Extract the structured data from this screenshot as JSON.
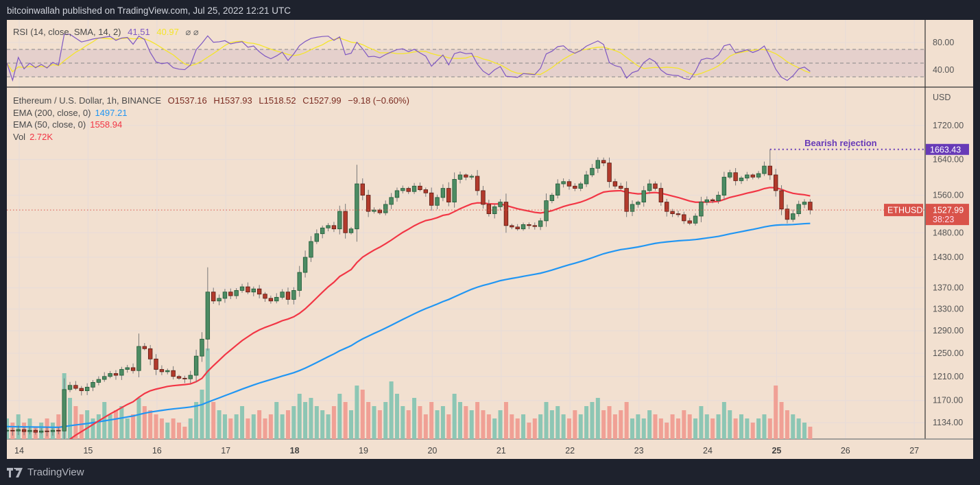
{
  "header": {
    "published": "bitcoinwallah published on TradingView.com, Jul 25, 2022 12:21 UTC"
  },
  "footer": {
    "brand": "TradingView",
    "logo_icon": "tradingview-logo-icon"
  },
  "rsi_legend": {
    "label": "RSI (14, close, SMA, 14, 2)",
    "rsi": "41.51",
    "sma": "40.97",
    "icons": "⌀ ⌀"
  },
  "main_legend": {
    "symbol": "Ethereum / U.S. Dollar, 1h, BINANCE",
    "open": "O1537.16",
    "high": "H1537.93",
    "low": "L1518.52",
    "close": "C1527.99",
    "change": "−9.18 (−0.60%)",
    "ema200_label": "EMA (200, close, 0)",
    "ema200_value": "1497.21",
    "ema50_label": "EMA (50, close, 0)",
    "ema50_value": "1558.94",
    "vol_label": "Vol",
    "vol_value": "2.72K"
  },
  "annotation": {
    "text": "Bearish rejection",
    "price": "1663.43"
  },
  "current": {
    "symbol": "ETHUSD",
    "price": "1527.99",
    "countdown": "38:23"
  },
  "colors": {
    "background": "#f2e0d0",
    "up": "#4c8b63",
    "down": "#b23a2c",
    "vol_up": "#8dc6b4",
    "vol_down": "#f0a095",
    "ema200": "#2196f3",
    "ema50": "#f23645",
    "rsi": "#7e57c2",
    "rsi_sma": "#f5e52a",
    "annotation": "#673ab7",
    "last_price": "#d9534a"
  },
  "chart_data": {
    "type": "candlestick",
    "timeframe": "1h",
    "price_axis": {
      "unit": "USD",
      "scale": "log",
      "ticks": [
        "1720.00",
        "1640.00",
        "1560.00",
        "1480.00",
        "1430.00",
        "1370.00",
        "1330.00",
        "1290.00",
        "1250.00",
        "1210.00",
        "1170.00",
        "1134.00"
      ]
    },
    "rsi_axis": {
      "ticks": [
        "80.00",
        "40.00"
      ],
      "band": [
        30,
        70
      ]
    },
    "time_axis": {
      "ticks": [
        "14",
        "15",
        "16",
        "17",
        "18",
        "19",
        "20",
        "21",
        "22",
        "23",
        "24",
        "25",
        "26",
        "27"
      ],
      "bold": [
        "18",
        "25"
      ]
    },
    "grid": true,
    "closes": [
      1122,
      1121,
      1123,
      1120,
      1122,
      1119,
      1121,
      1120,
      1122,
      1121,
      1188,
      1195,
      1190,
      1186,
      1192,
      1200,
      1205,
      1210,
      1215,
      1212,
      1222,
      1225,
      1220,
      1262,
      1258,
      1240,
      1222,
      1218,
      1220,
      1210,
      1207,
      1206,
      1212,
      1245,
      1275,
      1362,
      1345,
      1350,
      1362,
      1355,
      1365,
      1372,
      1362,
      1368,
      1358,
      1350,
      1345,
      1352,
      1362,
      1348,
      1365,
      1400,
      1430,
      1462,
      1478,
      1490,
      1495,
      1488,
      1525,
      1480,
      1488,
      1585,
      1560,
      1525,
      1528,
      1522,
      1540,
      1555,
      1570,
      1575,
      1568,
      1580,
      1572,
      1565,
      1538,
      1555,
      1575,
      1545,
      1595,
      1605,
      1600,
      1602,
      1570,
      1540,
      1520,
      1535,
      1545,
      1495,
      1492,
      1488,
      1497,
      1495,
      1493,
      1505,
      1548,
      1560,
      1585,
      1590,
      1580,
      1575,
      1585,
      1605,
      1620,
      1638,
      1632,
      1590,
      1580,
      1575,
      1525,
      1540,
      1545,
      1570,
      1585,
      1575,
      1545,
      1525,
      1520,
      1518,
      1505,
      1500,
      1515,
      1545,
      1550,
      1548,
      1560,
      1600,
      1610,
      1592,
      1598,
      1605,
      1600,
      1608,
      1625,
      1605,
      1570,
      1530,
      1508,
      1520,
      1540,
      1545,
      1527.99
    ],
    "high_extremes": {
      "35": 1410,
      "61": 1628,
      "23": 1285,
      "133": 1663.43,
      "103": 1645
    },
    "volumes_k": [
      5,
      4,
      6,
      4,
      5,
      3,
      4,
      5,
      4,
      6,
      16,
      10,
      8,
      6,
      7,
      5,
      6,
      9,
      6,
      7,
      8,
      5,
      6,
      10,
      8,
      7,
      6,
      5,
      4,
      5,
      4,
      3,
      5,
      9,
      12,
      22,
      9,
      7,
      6,
      5,
      6,
      8,
      5,
      6,
      7,
      5,
      6,
      9,
      6,
      7,
      8,
      11,
      9,
      10,
      8,
      7,
      6,
      8,
      11,
      9,
      7,
      13,
      12,
      9,
      8,
      7,
      9,
      14,
      11,
      8,
      7,
      10,
      8,
      6,
      9,
      7,
      8,
      6,
      11,
      9,
      8,
      7,
      9,
      7,
      6,
      5,
      7,
      9,
      6,
      5,
      6,
      4,
      5,
      6,
      9,
      7,
      8,
      6,
      5,
      7,
      6,
      8,
      9,
      10,
      7,
      8,
      6,
      7,
      9,
      5,
      6,
      5,
      7,
      6,
      5,
      4,
      6,
      5,
      7,
      6,
      5,
      8,
      6,
      5,
      6,
      9,
      7,
      5,
      6,
      5,
      4,
      5,
      6,
      5,
      13,
      9,
      7,
      6,
      5,
      4,
      3
    ]
  }
}
